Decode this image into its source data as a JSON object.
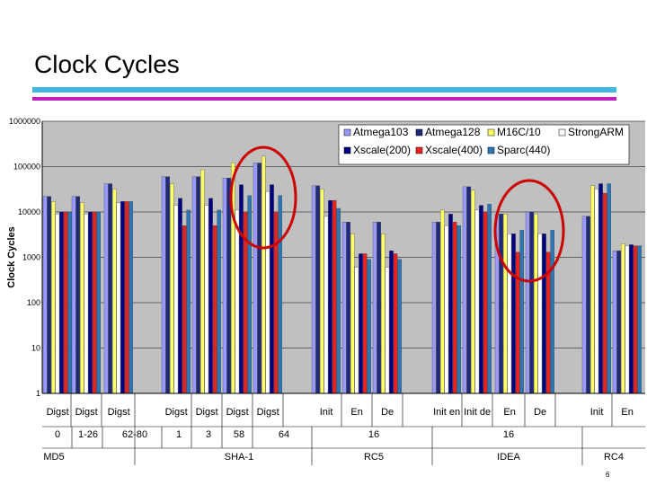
{
  "slide": {
    "title": "Clock Cycles",
    "page_number": "6",
    "rule_colors": [
      "#3fb7e0",
      "#c21fbf"
    ]
  },
  "chart_data": {
    "type": "bar",
    "ylabel": "Clock Cycles",
    "yscale": "log",
    "ylim": [
      1,
      1000000
    ],
    "yticks": [
      1,
      10,
      100,
      1000,
      10000,
      100000,
      1000000
    ],
    "ytick_labels": [
      "1",
      "10",
      "100",
      "1000",
      "10000",
      "100000",
      "1000000"
    ],
    "plot_background": "#c0c0c0",
    "legend_position": "top-right",
    "series": [
      {
        "name": "Atmega103",
        "color": "#9999ff"
      },
      {
        "name": "Atmega128",
        "color": "#1f2a7a"
      },
      {
        "name": "M16C/10",
        "color": "#ffff66"
      },
      {
        "name": "StrongARM",
        "color": "#ffffff"
      },
      {
        "name": "Xscale(200)",
        "color": "#000080"
      },
      {
        "name": "Xscale(400)",
        "color": "#e8231e"
      },
      {
        "name": "Sparc(440)",
        "color": "#2e75b6"
      }
    ],
    "categories": [
      "Digst",
      "Digst",
      "Digst",
      "Digst",
      "Digst",
      "Digst",
      "Digst",
      "Init",
      "En",
      "De",
      "Init en",
      "Init de",
      "En",
      "De",
      "Init",
      "En"
    ],
    "values": [
      [
        22000,
        22000,
        17000,
        9000,
        10000,
        10000,
        10000
      ],
      [
        22000,
        22000,
        16000,
        9000,
        10000,
        10000,
        10000
      ],
      [
        42000,
        42000,
        32000,
        16000,
        17000,
        17000,
        17000
      ],
      [
        60000,
        60000,
        42000,
        14000,
        20000,
        5000,
        11000
      ],
      [
        60000,
        60000,
        85000,
        14000,
        20000,
        5000,
        11000
      ],
      [
        56000,
        56000,
        120000,
        11000,
        40000,
        10000,
        23000
      ],
      [
        120000,
        120000,
        170000,
        28000,
        40000,
        10000,
        23000
      ],
      [
        38000,
        38000,
        32000,
        8000,
        18000,
        18000,
        12000
      ],
      [
        6000,
        6000,
        3300,
        600,
        1200,
        1200,
        900
      ],
      [
        6000,
        6000,
        3300,
        600,
        1400,
        1200,
        900
      ],
      [
        6000,
        6000,
        11000,
        5000,
        9000,
        6000,
        5000
      ],
      [
        36000,
        36000,
        30000,
        11000,
        14000,
        10000,
        15000
      ],
      [
        9000,
        9000,
        9000,
        3300,
        3300,
        1300,
        4000
      ],
      [
        10000,
        10000,
        9000,
        3300,
        3300,
        1300,
        4000
      ],
      [
        8000,
        8000,
        38000,
        32000,
        42000,
        26000,
        42000
      ],
      [
        1400,
        1400,
        2000,
        1800,
        1900,
        1800,
        1800
      ]
    ],
    "x_rows": {
      "row2": [
        "0",
        "1-26",
        "62-80",
        "1",
        "3",
        "58",
        "64",
        "16",
        "16"
      ],
      "row3": [
        "MD5",
        "SHA-1",
        "RC5",
        "IDEA",
        "RC4"
      ]
    },
    "annotations": [
      {
        "type": "ellipse",
        "color": "#cc0000",
        "target": "SHA-1 Digst 58 and 64"
      },
      {
        "type": "ellipse",
        "color": "#cc0000",
        "target": "IDEA En and De"
      }
    ]
  }
}
